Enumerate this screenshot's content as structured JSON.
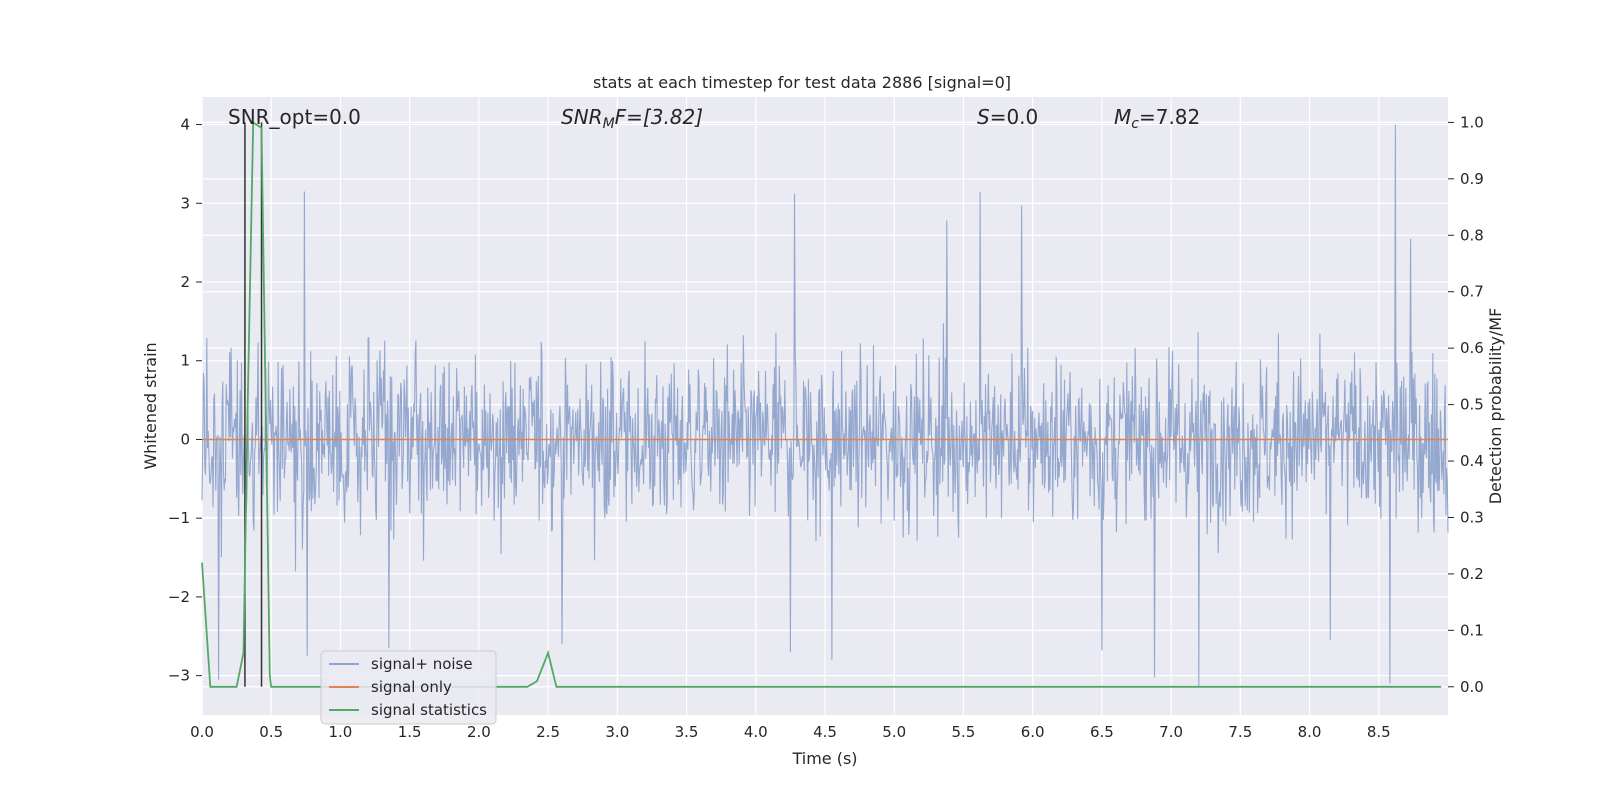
{
  "chart_data": {
    "type": "line",
    "title": "stats at each timestep for test data 2886 [signal=0]",
    "xlabel": "Time (s)",
    "ylabel_left": "Whitened strain",
    "ylabel_right": "Detection probability/MF",
    "xlim": [
      0.0,
      9.0
    ],
    "ylim_left": [
      -3.5,
      4.35
    ],
    "ylim_right": [
      -0.05,
      1.045
    ],
    "x_ticks": [
      "0.0",
      "0.5",
      "1.0",
      "1.5",
      "2.0",
      "2.5",
      "3.0",
      "3.5",
      "4.0",
      "4.5",
      "5.0",
      "5.5",
      "6.0",
      "6.5",
      "7.0",
      "7.5",
      "8.0",
      "8.5"
    ],
    "x_tick_values": [
      0.0,
      0.5,
      1.0,
      1.5,
      2.0,
      2.5,
      3.0,
      3.5,
      4.0,
      4.5,
      5.0,
      5.5,
      6.0,
      6.5,
      7.0,
      7.5,
      8.0,
      8.5
    ],
    "y_left_ticks": [
      "−3",
      "−2",
      "−1",
      "0",
      "1",
      "2",
      "3",
      "4"
    ],
    "y_left_tick_values": [
      -3,
      -2,
      -1,
      0,
      1,
      2,
      3,
      4
    ],
    "y_right_ticks": [
      "0.0",
      "0.1",
      "0.2",
      "0.3",
      "0.4",
      "0.5",
      "0.6",
      "0.7",
      "0.8",
      "0.9",
      "1.0"
    ],
    "y_right_tick_values": [
      0.0,
      0.1,
      0.2,
      0.3,
      0.4,
      0.5,
      0.6,
      0.7,
      0.8,
      0.9,
      1.0
    ],
    "grid": true,
    "legend_position": "lower-left",
    "annotations": {
      "snr_opt": "SNR_opt=0.0",
      "snr_mf_main": "SNR",
      "snr_mf_sub": "M",
      "snr_mf_rest": "F=[3.82]",
      "s_main": "S",
      "s_rest": "=0.0",
      "mc_main": "M",
      "mc_sub": "c",
      "mc_rest": "=7.82"
    },
    "series": [
      {
        "name": "signal+ noise",
        "color": "#8fa3cb",
        "style": "noise-band",
        "typical_range": [
          -1.75,
          1.85
        ],
        "spikes": [
          {
            "x": 0.74,
            "y": 3.15
          },
          {
            "x": 4.28,
            "y": 3.12
          },
          {
            "x": 5.62,
            "y": 3.14
          },
          {
            "x": 5.92,
            "y": 2.97
          },
          {
            "x": 5.38,
            "y": 2.78
          },
          {
            "x": 8.62,
            "y": 4.0
          },
          {
            "x": 8.73,
            "y": 2.55
          },
          {
            "x": 0.12,
            "y": -3.05
          },
          {
            "x": 7.2,
            "y": -3.15
          },
          {
            "x": 8.58,
            "y": -3.1
          },
          {
            "x": 6.88,
            "y": -3.02
          },
          {
            "x": 4.55,
            "y": -2.8
          },
          {
            "x": 4.25,
            "y": -2.7
          },
          {
            "x": 0.76,
            "y": -2.75
          },
          {
            "x": 1.35,
            "y": -2.65
          },
          {
            "x": 6.5,
            "y": -2.68
          },
          {
            "x": 2.6,
            "y": -2.6
          },
          {
            "x": 8.15,
            "y": -2.55
          }
        ]
      },
      {
        "name": "signal only",
        "color": "#dd8452",
        "x": [
          0.0,
          9.0
        ],
        "y": [
          0.0,
          0.0
        ]
      },
      {
        "name": "signal statistics",
        "color": "#55a868",
        "axis": "right",
        "x": [
          0.0,
          0.06,
          0.1,
          0.15,
          0.25,
          0.3,
          0.33,
          0.37,
          0.43,
          0.46,
          0.49,
          0.5,
          2.35,
          2.42,
          2.5,
          2.56,
          8.95
        ],
        "y": [
          0.22,
          0.0,
          0.0,
          0.0,
          0.0,
          0.06,
          0.5,
          1.0,
          0.99,
          0.5,
          0.02,
          0.0,
          0.0,
          0.01,
          0.06,
          0.0,
          0.0
        ]
      }
    ],
    "vertical_markers": [
      {
        "x": 0.31,
        "y_from": 0.0,
        "y_to": 1.0,
        "color": "#333333"
      },
      {
        "x": 0.43,
        "y_from": 0.0,
        "y_to": 1.0,
        "color": "#333333"
      }
    ]
  }
}
